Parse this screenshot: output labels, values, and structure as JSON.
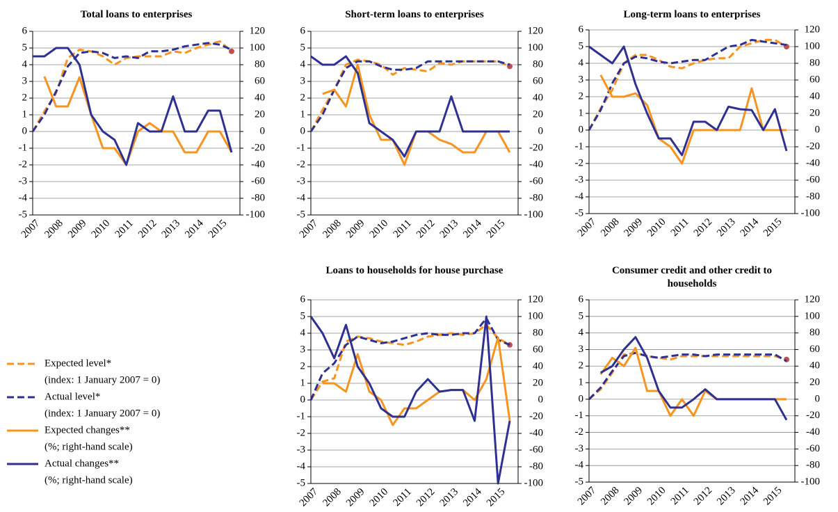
{
  "chart_data": [
    {
      "type": "line",
      "title": "Total loans to enterprises",
      "categories": [
        "2007",
        null,
        "2008",
        null,
        "2009",
        null,
        "2010",
        null,
        "2011",
        null,
        "2012",
        null,
        "2013",
        null,
        "2014",
        null,
        "2015",
        null
      ],
      "ylim": [
        -5,
        6
      ],
      "yticks": [
        -5,
        -4,
        -3,
        -2,
        -1,
        0,
        1,
        2,
        3,
        4,
        5,
        6
      ],
      "y2lim": [
        -100,
        120
      ],
      "y2ticks": [
        -100,
        -80,
        -60,
        -40,
        -20,
        0,
        20,
        40,
        60,
        80,
        100,
        120
      ],
      "grid": true,
      "series": [
        {
          "name": "Expected level*",
          "note": "(index: 1 January 2007 = 0)",
          "color": "#f7941d",
          "dash": true,
          "values": [
            0,
            1.2,
            2.3,
            4.4,
            4.9,
            4.8,
            4.5,
            4.0,
            4.4,
            4.5,
            4.5,
            4.5,
            4.8,
            4.7,
            5.0,
            5.2,
            5.4,
            4.8
          ]
        },
        {
          "name": "Actual level*",
          "note": "(index: 1 January 2007 = 0)",
          "color": "#2e3192",
          "dash": true,
          "values": [
            0,
            1.0,
            2.4,
            3.9,
            4.7,
            4.8,
            4.7,
            4.4,
            4.5,
            4.4,
            4.8,
            4.8,
            4.9,
            5.1,
            5.2,
            5.3,
            5.2,
            4.9
          ]
        },
        {
          "name": "Expected changes**",
          "note": "(%; right-hand scale)",
          "color": "#f7941d",
          "dash": false,
          "axis": "y2",
          "values": [
            null,
            66,
            30,
            30,
            65,
            20,
            -20,
            -20,
            -40,
            0,
            10,
            0,
            0,
            -25,
            -25,
            0,
            0,
            -25
          ]
        },
        {
          "name": "Actual changes**",
          "note": "(%; right-hand scale)",
          "color": "#2e3192",
          "dash": false,
          "axis": "y2",
          "values": [
            90,
            90,
            100,
            100,
            80,
            20,
            0,
            -10,
            -40,
            10,
            0,
            0,
            42,
            0,
            0,
            25,
            25,
            -25
          ]
        }
      ]
    },
    {
      "type": "line",
      "title": "Short-term loans to enterprises",
      "categories": [
        "2007",
        null,
        "2008",
        null,
        "2009",
        null,
        "2010",
        null,
        "2011",
        null,
        "2012",
        null,
        "2013",
        null,
        "2014",
        null,
        "2015",
        null
      ],
      "ylim": [
        -5,
        6
      ],
      "yticks": [
        -5,
        -4,
        -3,
        -2,
        -1,
        0,
        1,
        2,
        3,
        4,
        5,
        6
      ],
      "y2lim": [
        -100,
        120
      ],
      "y2ticks": [
        -100,
        -80,
        -60,
        -40,
        -20,
        0,
        20,
        40,
        60,
        80,
        100,
        120
      ],
      "grid": true,
      "series": [
        {
          "name": "Expected level*",
          "color": "#f7941d",
          "dash": true,
          "values": [
            0,
            1.3,
            2.5,
            4.0,
            4.3,
            4.2,
            4.0,
            3.4,
            3.8,
            3.7,
            3.6,
            4.1,
            4.0,
            4.2,
            4.2,
            4.2,
            4.2,
            3.9
          ]
        },
        {
          "name": "Actual level*",
          "color": "#2e3192",
          "dash": true,
          "values": [
            0,
            1.0,
            2.5,
            3.8,
            4.2,
            4.2,
            3.9,
            3.7,
            3.7,
            3.8,
            4.2,
            4.2,
            4.2,
            4.2,
            4.2,
            4.2,
            4.2,
            4.0
          ]
        },
        {
          "name": "Expected changes**",
          "color": "#f7941d",
          "dash": false,
          "axis": "y2",
          "values": [
            null,
            45,
            50,
            30,
            80,
            20,
            -10,
            -10,
            -40,
            0,
            0,
            -10,
            -15,
            -25,
            -25,
            0,
            0,
            -25
          ]
        },
        {
          "name": "Actual changes**",
          "color": "#2e3192",
          "dash": false,
          "axis": "y2",
          "values": [
            90,
            80,
            80,
            90,
            70,
            10,
            0,
            -10,
            -30,
            0,
            0,
            0,
            42,
            0,
            0,
            0,
            0,
            0
          ]
        }
      ]
    },
    {
      "type": "line",
      "title": "Long-term loans to enterprises",
      "categories": [
        "2007",
        null,
        "2008",
        null,
        "2009",
        null,
        "2010",
        null,
        "2011",
        null,
        "2012",
        null,
        "2013",
        null,
        "2014",
        null,
        "2015",
        null
      ],
      "ylim": [
        -5,
        6
      ],
      "yticks": [
        -5,
        -4,
        -3,
        -2,
        -1,
        0,
        1,
        2,
        3,
        4,
        5,
        6
      ],
      "y2lim": [
        -100,
        120
      ],
      "y2ticks": [
        -100,
        -80,
        -60,
        -40,
        -20,
        0,
        20,
        40,
        60,
        80,
        100,
        120
      ],
      "grid": true,
      "series": [
        {
          "name": "Expected level*",
          "color": "#f7941d",
          "dash": true,
          "values": [
            0,
            1.3,
            2.4,
            4.0,
            4.5,
            4.5,
            4.2,
            3.8,
            3.7,
            4.0,
            4.2,
            4.3,
            4.3,
            5.0,
            5.2,
            5.4,
            5.4,
            5.0
          ]
        },
        {
          "name": "Actual level*",
          "color": "#2e3192",
          "dash": true,
          "values": [
            0,
            1.2,
            2.8,
            4.0,
            4.4,
            4.3,
            4.1,
            4.0,
            4.1,
            4.2,
            4.2,
            4.6,
            5.0,
            5.1,
            5.4,
            5.3,
            5.2,
            5.1
          ]
        },
        {
          "name": "Expected changes**",
          "color": "#f7941d",
          "dash": false,
          "axis": "y2",
          "values": [
            null,
            66,
            40,
            40,
            44,
            30,
            -10,
            -20,
            -40,
            0,
            0,
            0,
            0,
            0,
            50,
            0,
            0,
            0
          ]
        },
        {
          "name": "Actual changes**",
          "color": "#2e3192",
          "dash": false,
          "axis": "y2",
          "values": [
            100,
            90,
            80,
            100,
            55,
            20,
            -10,
            -10,
            -30,
            10,
            10,
            0,
            28,
            25,
            24,
            0,
            25,
            -25
          ]
        }
      ]
    },
    {
      "type": "line",
      "title": "Loans to households for house purchase",
      "categories": [
        "2007",
        null,
        "2008",
        null,
        "2009",
        null,
        "2010",
        null,
        "2011",
        null,
        "2012",
        null,
        "2013",
        null,
        "2014",
        null,
        "2015",
        null
      ],
      "ylim": [
        -5,
        6
      ],
      "yticks": [
        -5,
        -4,
        -3,
        -2,
        -1,
        0,
        1,
        2,
        3,
        4,
        5,
        6
      ],
      "y2lim": [
        -100,
        120
      ],
      "y2ticks": [
        -100,
        -80,
        -60,
        -40,
        -20,
        0,
        20,
        40,
        60,
        80,
        100,
        120
      ],
      "grid": true,
      "series": [
        {
          "name": "Expected level*",
          "color": "#f7941d",
          "dash": true,
          "values": [
            0,
            1.1,
            1.3,
            3.5,
            3.8,
            3.7,
            3.5,
            3.4,
            3.3,
            3.5,
            3.8,
            3.9,
            4.0,
            3.9,
            4.0,
            4.5,
            3.7,
            3.3
          ]
        },
        {
          "name": "Actual level*",
          "color": "#2e3192",
          "dash": true,
          "values": [
            0,
            1.6,
            2.2,
            3.3,
            3.8,
            3.6,
            3.4,
            3.5,
            3.7,
            3.9,
            4.0,
            3.9,
            3.9,
            4.0,
            4.0,
            4.9,
            3.6,
            3.3
          ]
        },
        {
          "name": "Expected changes**",
          "color": "#f7941d",
          "dash": false,
          "axis": "y2",
          "values": [
            null,
            20,
            20,
            10,
            55,
            10,
            0,
            -30,
            -10,
            -10,
            0,
            10,
            12,
            12,
            0,
            25,
            75,
            -25
          ]
        },
        {
          "name": "Actual changes**",
          "color": "#2e3192",
          "dash": false,
          "axis": "y2",
          "values": [
            100,
            80,
            50,
            90,
            40,
            20,
            -10,
            -20,
            -20,
            10,
            25,
            10,
            12,
            12,
            -25,
            100,
            -100,
            -25
          ]
        }
      ]
    },
    {
      "type": "line",
      "title": "Consumer credit and other credit to households",
      "categories": [
        "2007",
        null,
        "2008",
        null,
        "2009",
        null,
        "2010",
        null,
        "2011",
        null,
        "2012",
        null,
        "2013",
        null,
        "2014",
        null,
        "2015",
        null
      ],
      "ylim": [
        -5,
        6
      ],
      "yticks": [
        -5,
        -4,
        -3,
        -2,
        -1,
        0,
        1,
        2,
        3,
        4,
        5,
        6
      ],
      "y2lim": [
        -100,
        120
      ],
      "y2ticks": [
        -100,
        -80,
        -60,
        -40,
        -20,
        0,
        20,
        40,
        60,
        80,
        100,
        120
      ],
      "grid": true,
      "series": [
        {
          "name": "Expected level*",
          "color": "#f7941d",
          "dash": true,
          "values": [
            0,
            0.6,
            1.6,
            2.7,
            2.8,
            2.6,
            2.5,
            2.4,
            2.6,
            2.6,
            2.6,
            2.6,
            2.6,
            2.6,
            2.6,
            2.6,
            2.6,
            2.4
          ]
        },
        {
          "name": "Actual level*",
          "color": "#2e3192",
          "dash": true,
          "values": [
            0,
            0.7,
            1.7,
            2.6,
            2.8,
            2.6,
            2.5,
            2.6,
            2.7,
            2.7,
            2.6,
            2.7,
            2.7,
            2.7,
            2.7,
            2.7,
            2.7,
            2.3
          ]
        },
        {
          "name": "Expected changes**",
          "color": "#f7941d",
          "dash": false,
          "axis": "y2",
          "values": [
            null,
            30,
            50,
            40,
            62,
            10,
            10,
            -20,
            0,
            -20,
            10,
            0,
            0,
            0,
            0,
            0,
            0,
            0
          ]
        },
        {
          "name": "Actual changes**",
          "color": "#2e3192",
          "dash": false,
          "axis": "y2",
          "values": [
            null,
            32,
            40,
            60,
            75,
            50,
            10,
            -10,
            -10,
            0,
            12,
            0,
            0,
            0,
            0,
            0,
            0,
            -25
          ]
        }
      ]
    }
  ]
}
